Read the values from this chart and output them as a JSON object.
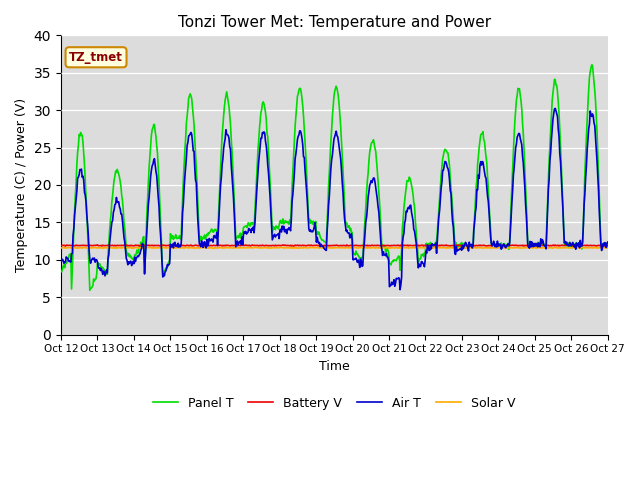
{
  "title": "Tonzi Tower Met: Temperature and Power",
  "xlabel": "Time",
  "ylabel": "Temperature (C) / Power (V)",
  "annotation": "TZ_tmet",
  "xlim": [
    0,
    15
  ],
  "ylim": [
    0,
    40
  ],
  "yticks": [
    0,
    5,
    10,
    15,
    20,
    25,
    30,
    35,
    40
  ],
  "xtick_labels": [
    "Oct 12",
    "Oct 13",
    "Oct 14",
    "Oct 15",
    "Oct 16",
    "Oct 17",
    "Oct 18",
    "Oct 19",
    "Oct 20",
    "Oct 21",
    "Oct 22",
    "Oct 23",
    "Oct 24",
    "Oct 25",
    "Oct 26",
    "Oct 27"
  ],
  "bg_color": "#dcdcdc",
  "panel_t_color": "#00dd00",
  "battery_v_color": "#ee0000",
  "air_t_color": "#0000cc",
  "solar_v_color": "#ffaa00",
  "legend_labels": [
    "Panel T",
    "Battery V",
    "Air T",
    "Solar V"
  ],
  "line_width": 1.2,
  "battery_v_value": 11.9,
  "solar_v_value": 11.6,
  "panel_day_peaks": [
    27,
    22,
    28,
    32,
    32,
    31,
    33,
    33,
    26,
    21,
    25,
    27,
    33,
    34,
    36,
    36
  ],
  "panel_night_bases": [
    6,
    11,
    8,
    13,
    13,
    14,
    15,
    15,
    12,
    10,
    12,
    12,
    12,
    12,
    12,
    12
  ],
  "air_day_peaks": [
    22,
    18,
    23,
    27,
    27,
    27,
    27,
    27,
    21,
    17,
    23,
    23,
    27,
    30,
    30,
    30
  ],
  "air_night_bases": [
    10,
    10,
    8,
    12,
    12,
    13,
    14,
    14,
    11,
    9,
    11,
    12,
    12,
    12,
    12,
    12
  ]
}
